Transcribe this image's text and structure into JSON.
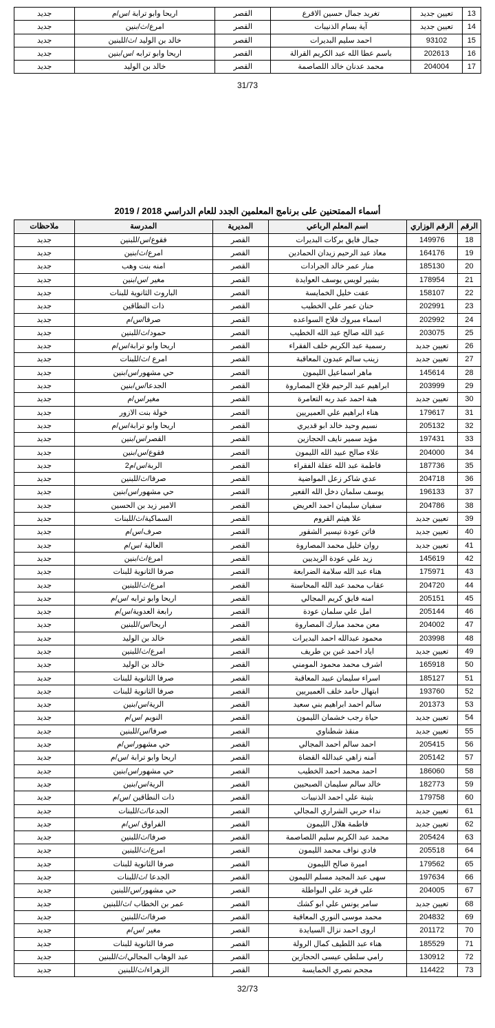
{
  "topTable": {
    "rows": [
      {
        "no": "13",
        "id": "تعيين جديد",
        "name": "تغريد جمال حسين الاقرع",
        "dir": "القصر",
        "school": "اريحا وابو ترابة /س/م",
        "note": "جديد"
      },
      {
        "no": "14",
        "id": "تعيين جديد",
        "name": "آية بسام الذنيبات",
        "dir": "القصر",
        "school": "امرع/ث/بنين",
        "note": "جديد"
      },
      {
        "no": "15",
        "id": "93102",
        "name": "احمد سليم البديرات",
        "dir": "القصر",
        "school": "خالد بن الوليد /ث/للبنين",
        "note": "جديد"
      },
      {
        "no": "16",
        "id": "202613",
        "name": "باسم عطا الله عبد الكريم القرالة",
        "dir": "القصر",
        "school": "اريحا وابو ترابه /س/بنين",
        "note": "جديد"
      },
      {
        "no": "17",
        "id": "204004",
        "name": "محمد عدنان خالد اللصاصمة",
        "dir": "القصر",
        "school": "خالد بن الوليد",
        "note": "جديد"
      }
    ]
  },
  "pageNum1": "31/73",
  "title": "أسماء الممتحنين على برنامج المعلمين الجدد للعام الدراسي 2018 / 2019",
  "headers": {
    "no": "الرقم",
    "id": "الرقم الوزاري",
    "name": "اسم المعلم الرباعي",
    "dir": "المديرية",
    "school": "المدرسة",
    "note": "ملاحظات"
  },
  "mainTable": {
    "rows": [
      {
        "no": "18",
        "id": "149976",
        "name": "جمال فايق بركات البديرات",
        "dir": "القصر",
        "school": "فقوع/س/للبنين",
        "note": "جديد"
      },
      {
        "no": "19",
        "id": "164176",
        "name": "معاذ عبد الرحيم زيدان الحمادين",
        "dir": "القصر",
        "school": "امرع/ث/بنين",
        "note": "جديد"
      },
      {
        "no": "20",
        "id": "185130",
        "name": "منار عمر خالد الجرادات",
        "dir": "القصر",
        "school": "امنه بنت وهب",
        "note": "جديد"
      },
      {
        "no": "21",
        "id": "178954",
        "name": "بشير لويس يوسف العوايدة",
        "dir": "القصر",
        "school": "مغير /س/بنين",
        "note": "جديد"
      },
      {
        "no": "22",
        "id": "158107",
        "name": "عفت خليل الخمايسة",
        "dir": "القصر",
        "school": "الباروث الثانوية للبنات",
        "note": "جديد"
      },
      {
        "no": "23",
        "id": "202991",
        "name": "حنان عمر علي الخطيب",
        "dir": "القصر",
        "school": "ذات النطاقين",
        "note": "جديد"
      },
      {
        "no": "24",
        "id": "202992",
        "name": "اسماء مبروك فلاح السواعده",
        "dir": "القصر",
        "school": "صرفا/س/م",
        "note": "جديد"
      },
      {
        "no": "25",
        "id": "203075",
        "name": "عبد الله صالح عبد الله الخطيب",
        "dir": "القصر",
        "school": "حمود/ث/للبنين",
        "note": "جديد"
      },
      {
        "no": "26",
        "id": "تعيين جديد",
        "name": "رسمية عبد الكريم خلف الفقراء",
        "dir": "القصر",
        "school": "اريحا وابو ترابة/س/م",
        "note": "جديد"
      },
      {
        "no": "27",
        "id": "تعيين جديد",
        "name": "زينب سالم عبدون المعاقبة",
        "dir": "القصر",
        "school": "امرع /ث/للبنات",
        "note": "جديد"
      },
      {
        "no": "28",
        "id": "145614",
        "name": "ماهر اسماعيل الليمون",
        "dir": "القصر",
        "school": "حي مشهور/س/بنين",
        "note": "جديد"
      },
      {
        "no": "29",
        "id": "203999",
        "name": "ابراهيم عبد الرحيم فلاح المصاروة",
        "dir": "القصر",
        "school": "الجدعا/س/بنين",
        "note": "جديد"
      },
      {
        "no": "30",
        "id": "تعيين جديد",
        "name": "هبة احمد عبد ربه التعامرة",
        "dir": "القصر",
        "school": "مغير/س/م",
        "note": "جديد"
      },
      {
        "no": "31",
        "id": "179617",
        "name": "هناء ابراهيم علي العميريين",
        "dir": "القصر",
        "school": "خولة بنت الازور",
        "note": "جديد"
      },
      {
        "no": "32",
        "id": "205132",
        "name": "نسيم وحيد خالد ابو قديري",
        "dir": "القصر",
        "school": "اريحا وابو ترابة/س/م",
        "note": "جديد"
      },
      {
        "no": "33",
        "id": "197431",
        "name": "مؤيد سمير نايف الحجازين",
        "dir": "القصر",
        "school": "القصر/س/بنين",
        "note": "جديد"
      },
      {
        "no": "34",
        "id": "204000",
        "name": "علاء صالح عبيد الله الليمون",
        "dir": "القصر",
        "school": "فقوع/س/بنين",
        "note": "جديد"
      },
      {
        "no": "35",
        "id": "187736",
        "name": "فاطمة عبد الله عقلة الفقراء",
        "dir": "القصر",
        "school": "الربة/س/م2",
        "note": "جديد"
      },
      {
        "no": "36",
        "id": "204718",
        "name": "عدي شاكر زعل المواضية",
        "dir": "القصر",
        "school": "صرفا/ث/للبنين",
        "note": "جديد"
      },
      {
        "no": "37",
        "id": "196133",
        "name": "يوسف سلمان دخل الله القعير",
        "dir": "القصر",
        "school": "حي مشهور/س/بنين",
        "note": "جديد"
      },
      {
        "no": "38",
        "id": "204786",
        "name": "سفيان سليمان احمد العريض",
        "dir": "القصر",
        "school": "الامير زيد بن الحسين",
        "note": "جديد"
      },
      {
        "no": "39",
        "id": "تعيين جديد",
        "name": "علا هيثم القروم",
        "dir": "القصر",
        "school": "السماكية/ث/للبنات",
        "note": "جديد"
      },
      {
        "no": "40",
        "id": "تعيين جديد",
        "name": "فاتن عودة تيسير الشقور",
        "dir": "القصر",
        "school": "صرف/س/م",
        "note": "جديد"
      },
      {
        "no": "41",
        "id": "تعيين جديد",
        "name": "روان خليل محمد المصاروة",
        "dir": "القصر",
        "school": "العالية /س/م",
        "note": "جديد"
      },
      {
        "no": "42",
        "id": "145619",
        "name": "زيد علي عودة الزيديين",
        "dir": "القصر",
        "school": "امرع/ث/بنين",
        "note": "جديد"
      },
      {
        "no": "43",
        "id": "175971",
        "name": "هناء عبد الله سلامة الضرابعة",
        "dir": "القصر",
        "school": "صرفا الثانوية للبنات",
        "note": "جديد"
      },
      {
        "no": "44",
        "id": "204720",
        "name": "عقاب محمد عبد الله المحاسنة",
        "dir": "القصر",
        "school": "امرع/ث/للبنين",
        "note": "جديد"
      },
      {
        "no": "45",
        "id": "205151",
        "name": "امنه فايق كريم المجالي",
        "dir": "القصر",
        "school": "اريحا وابو ترابه /س/م",
        "note": "جديد"
      },
      {
        "no": "46",
        "id": "205144",
        "name": "امل علي سلمان عودة",
        "dir": "القصر",
        "school": "رابعة العدوية/س/م",
        "note": "جديد"
      },
      {
        "no": "47",
        "id": "204002",
        "name": "معن محمد مبارك المصاروة",
        "dir": "القصر",
        "school": "اريحا/س/للبنين",
        "note": "جديد"
      },
      {
        "no": "48",
        "id": "203998",
        "name": "محمود عبدالله احمد البديرات",
        "dir": "القصر",
        "school": "خالد بن الوليد",
        "note": "جديد"
      },
      {
        "no": "49",
        "id": "تعيين جديد",
        "name": "اياد احمد غبن بن طريف",
        "dir": "القصر",
        "school": "امرع/ث/للبنين",
        "note": "جديد"
      },
      {
        "no": "50",
        "id": "165918",
        "name": "اشرف محمد محمود المومني",
        "dir": "القصر",
        "school": "خالد بن الوليد",
        "note": "جديد"
      },
      {
        "no": "51",
        "id": "185127",
        "name": "اسراء سليمان عبيد المعاقبة",
        "dir": "القصر",
        "school": "صرفا الثانوية للبنات",
        "note": "جديد"
      },
      {
        "no": "52",
        "id": "193760",
        "name": "ابتهال حامد خلف العميريين",
        "dir": "القصر",
        "school": "صرفا الثانوية للبنات",
        "note": "جديد"
      },
      {
        "no": "53",
        "id": "201373",
        "name": "سالم احمد ابراهيم بني سعيد",
        "dir": "القصر",
        "school": "الرية/س/بنين",
        "note": "جديد"
      },
      {
        "no": "54",
        "id": "تعيين جديد",
        "name": "حياة رجب خشمان الليمون",
        "dir": "القصر",
        "school": "النويم /س/م",
        "note": "جديد"
      },
      {
        "no": "55",
        "id": "تعيين جديد",
        "name": "منقذ شطناوي",
        "dir": "القصر",
        "school": "صرفا/س/للبنين",
        "note": "جديد"
      },
      {
        "no": "56",
        "id": "205415",
        "name": "احمد سالم احمد المجالي",
        "dir": "القصر",
        "school": "حي مشهور/س/م",
        "note": "جديد"
      },
      {
        "no": "57",
        "id": "205142",
        "name": "آمنه زاهي عبدالله القضاة",
        "dir": "القصر",
        "school": "اريحا وابو ترابة /س/م",
        "note": "جديد"
      },
      {
        "no": "58",
        "id": "186060",
        "name": "احمد محمد احمد الخطيب",
        "dir": "القصر",
        "school": "حي مشهور/س/بنين",
        "note": "جديد"
      },
      {
        "no": "59",
        "id": "182773",
        "name": "خالد سالم سليمان الصبحيين",
        "dir": "القصر",
        "school": "الرية/س/بنين",
        "note": "جديد"
      },
      {
        "no": "60",
        "id": "179758",
        "name": "بثينة علي احمد الذنيبات",
        "dir": "القصر",
        "school": "ذات النطاقين /س/م",
        "note": "جديد"
      },
      {
        "no": "61",
        "id": "تعيين جديد",
        "name": "نداء حربي الشراري المجالي",
        "dir": "القصر",
        "school": "الجدعا/ث/للبنات",
        "note": "جديد"
      },
      {
        "no": "62",
        "id": "تعيين جديد",
        "name": "فاطمة هلال الليمون",
        "dir": "القصر",
        "school": "الفراوق /س/م",
        "note": "جديد"
      },
      {
        "no": "63",
        "id": "205424",
        "name": "محمد عبد الكريم سليم اللصاصمة",
        "dir": "القصر",
        "school": "صرفا/ث/للبنين",
        "note": "جديد"
      },
      {
        "no": "64",
        "id": "205518",
        "name": "فادي نواف محمد الليمون",
        "dir": "القصر",
        "school": "امرع/ث/للبنين",
        "note": "جديد"
      },
      {
        "no": "65",
        "id": "179562",
        "name": "اميرة صالح الليمون",
        "dir": "القصر",
        "school": "صرفا الثانوية للبنات",
        "note": "جديد"
      },
      {
        "no": "66",
        "id": "197634",
        "name": "سهى عبد المجيد مسلم الليمون",
        "dir": "القصر",
        "school": "الجدعا /ث/للبنات",
        "note": "جديد"
      },
      {
        "no": "67",
        "id": "204005",
        "name": "علي فريد علي البواطلة",
        "dir": "القصر",
        "school": "حي مشهور/س/للبنين",
        "note": "جديد"
      },
      {
        "no": "68",
        "id": "تعيين جديد",
        "name": "سامر يونس علي ابو كشك",
        "dir": "القصر",
        "school": "عمر بن الخطاب /ث/للبنين",
        "note": "جديد"
      },
      {
        "no": "69",
        "id": "204832",
        "name": "محمد موسى النوري المعاقبة",
        "dir": "القصر",
        "school": "صرفا/ث/للبنين",
        "note": "جديد"
      },
      {
        "no": "70",
        "id": "201172",
        "name": "اروى احمد نزال السيايدة",
        "dir": "القصر",
        "school": "مغير /س/م",
        "note": "جديد"
      },
      {
        "no": "71",
        "id": "185529",
        "name": "هناء عبد اللطيف كمال الرولة",
        "dir": "القصر",
        "school": "صرفا الثانوية للبنات",
        "note": "جديد"
      },
      {
        "no": "72",
        "id": "130912",
        "name": "رامي سلطي عيسى الحجازين",
        "dir": "القصر",
        "school": "عبد الوهاب المجالي/ث/للبنين",
        "note": "جديد"
      },
      {
        "no": "73",
        "id": "114422",
        "name": "مجحم نصري الخمايسة",
        "dir": "القصر",
        "school": "الزهراء/ث/للبنين",
        "note": "جديد"
      }
    ]
  },
  "pageNum2": "32/73",
  "colWidths": {
    "no": "4%",
    "id": "11%",
    "name": "30%",
    "dir": "12%",
    "school": "30%",
    "note": "13%"
  }
}
